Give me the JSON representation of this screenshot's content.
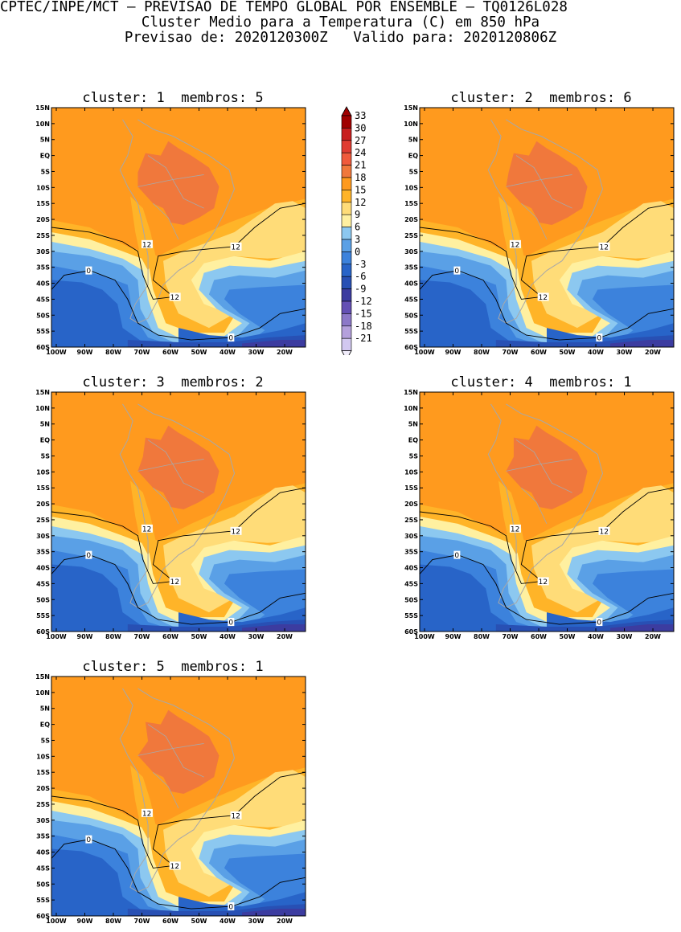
{
  "header": {
    "line1": "CPTEC/INPE/MCT – PREVISAO DE TEMPO GLOBAL POR ENSEMBLE – TQ0126L028",
    "line2": "Cluster Medio para a Temperatura (C) em 850 hPa",
    "line3": "Previsao de: 2020120300Z   Valido para: 2020120806Z"
  },
  "lat_labels": [
    "15N",
    "10N",
    "5N",
    "EQ",
    "5S",
    "10S",
    "15S",
    "20S",
    "25S",
    "30S",
    "35S",
    "40S",
    "45S",
    "50S",
    "55S",
    "60S"
  ],
  "lon_labels": [
    "100W",
    "90W",
    "80W",
    "70W",
    "60W",
    "50W",
    "40W",
    "30W",
    "20W"
  ],
  "colorbar": {
    "levels": [
      "33",
      "30",
      "27",
      "24",
      "21",
      "18",
      "15",
      "12",
      "9",
      "6",
      "3",
      "0",
      "-3",
      "-6",
      "-9",
      "-12",
      "-15",
      "-18",
      "-21"
    ],
    "colors": [
      "#a00000",
      "#c81e1e",
      "#e03c32",
      "#f05a3c",
      "#f0783c",
      "#ff9a1e",
      "#ffb428",
      "#ffdc78",
      "#fff0a0",
      "#8cc8f0",
      "#5aa0e6",
      "#3c82dc",
      "#2864c8",
      "#2850b4",
      "#3c3ca0",
      "#6450b4",
      "#8c78c8",
      "#b4a0dc",
      "#d2c8f0"
    ]
  },
  "panels": [
    {
      "title": "cluster: 1  membros: 5",
      "labels": [
        "12",
        "12",
        "12",
        "0",
        "0"
      ]
    },
    {
      "title": "cluster: 2  membros: 6",
      "labels": [
        "12",
        "12",
        "12",
        "0",
        "0"
      ]
    },
    {
      "title": "cluster: 3  membros: 2",
      "labels": [
        "12",
        "12",
        "12",
        "0",
        "0"
      ]
    },
    {
      "title": "cluster: 4  membros: 1",
      "labels": [
        "12",
        "12",
        "12",
        "0",
        "0"
      ]
    },
    {
      "title": "cluster: 5  membros: 1",
      "labels": [
        "12",
        "12",
        "12",
        "0",
        "0"
      ]
    }
  ]
}
